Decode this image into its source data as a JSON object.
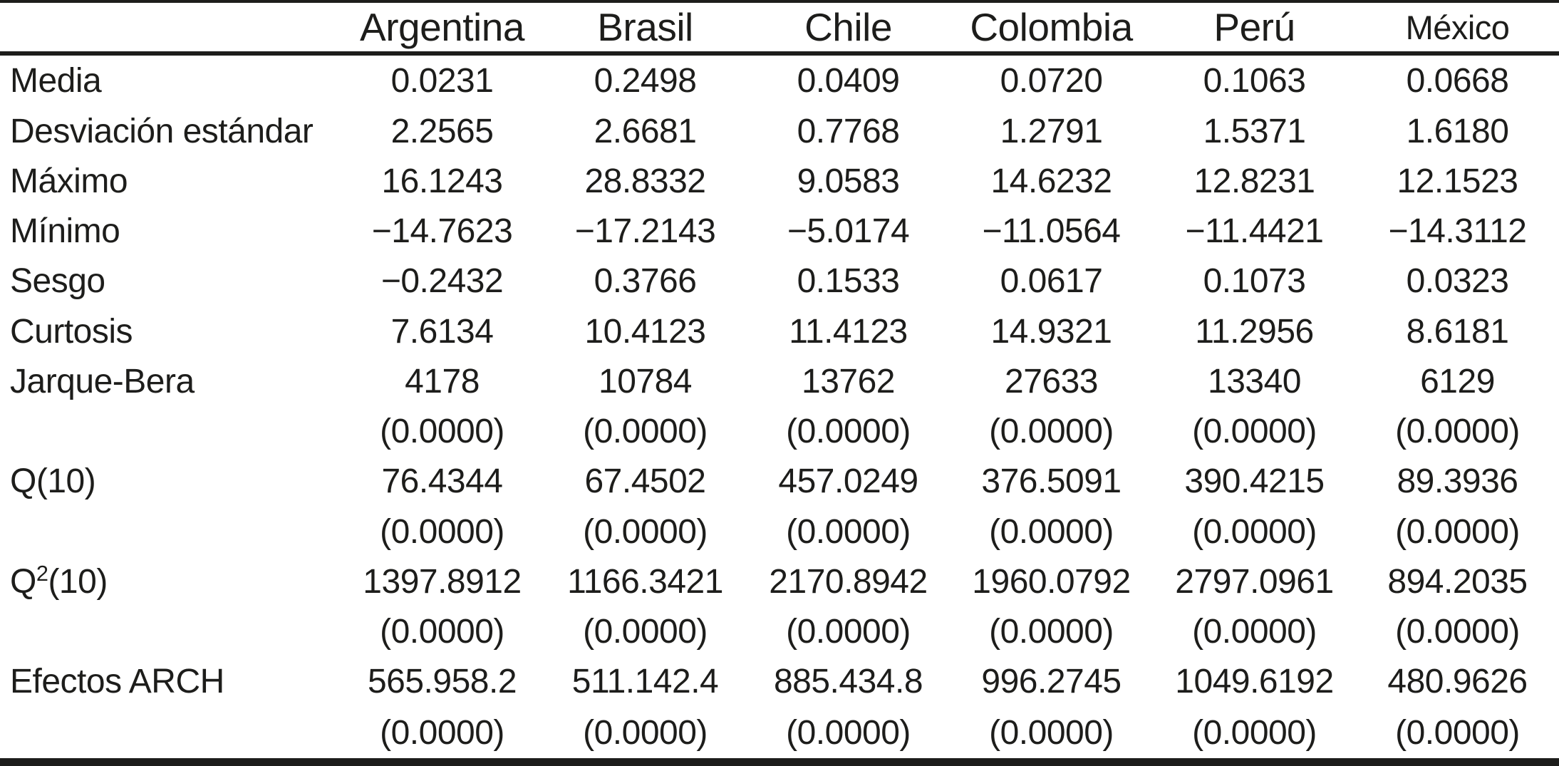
{
  "table": {
    "columns": [
      "Argentina",
      "Brasil",
      "Chile",
      "Colombia",
      "Perú",
      "México"
    ],
    "rows": [
      {
        "label": "Media",
        "values": [
          "0.0231",
          "0.2498",
          "0.0409",
          "0.0720",
          "0.1063",
          "0.0668"
        ]
      },
      {
        "label": "Desviación estándar",
        "values": [
          "2.2565",
          "2.6681",
          "0.7768",
          "1.2791",
          "1.5371",
          "1.6180"
        ]
      },
      {
        "label": "Máximo",
        "values": [
          "16.1243",
          "28.8332",
          "9.0583",
          "14.6232",
          "12.8231",
          "12.1523"
        ]
      },
      {
        "label": "Mínimo",
        "values": [
          "−14.7623",
          "−17.2143",
          "−5.0174",
          "−11.0564",
          "−11.4421",
          "−14.3112"
        ]
      },
      {
        "label": "Sesgo",
        "values": [
          "−0.2432",
          "0.3766",
          "0.1533",
          "0.0617",
          "0.1073",
          "0.0323"
        ]
      },
      {
        "label": "Curtosis",
        "values": [
          "7.6134",
          "10.4123",
          "11.4123",
          "14.9321",
          "11.2956",
          "8.6181"
        ]
      },
      {
        "label": "Jarque-Bera",
        "values": [
          "4178",
          "10784",
          "13762",
          "27633",
          "13340",
          "6129"
        ]
      },
      {
        "label": "",
        "values": [
          "(0.0000)",
          "(0.0000)",
          "(0.0000)",
          "(0.0000)",
          "(0.0000)",
          "(0.0000)"
        ]
      },
      {
        "label": "Q(10)",
        "values": [
          "76.4344",
          "67.4502",
          "457.0249",
          "376.5091",
          "390.4215",
          "89.3936"
        ]
      },
      {
        "label": "",
        "values": [
          "(0.0000)",
          "(0.0000)",
          "(0.0000)",
          "(0.0000)",
          "(0.0000)",
          "(0.0000)"
        ]
      },
      {
        "label": "Q^2(10)",
        "values": [
          "1397.8912",
          "1166.3421",
          "2170.8942",
          "1960.0792",
          "2797.0961",
          "894.2035"
        ]
      },
      {
        "label": "",
        "values": [
          "(0.0000)",
          "(0.0000)",
          "(0.0000)",
          "(0.0000)",
          "(0.0000)",
          "(0.0000)"
        ]
      },
      {
        "label": "Efectos ARCH",
        "values": [
          "565.958.2",
          "511.142.4",
          "885.434.8",
          "996.2745",
          "1049.6192",
          "480.9626"
        ]
      },
      {
        "label": "",
        "values": [
          "(0.0000)",
          "(0.0000)",
          "(0.0000)",
          "(0.0000)",
          "(0.0000)",
          "(0.0000)"
        ]
      }
    ]
  }
}
